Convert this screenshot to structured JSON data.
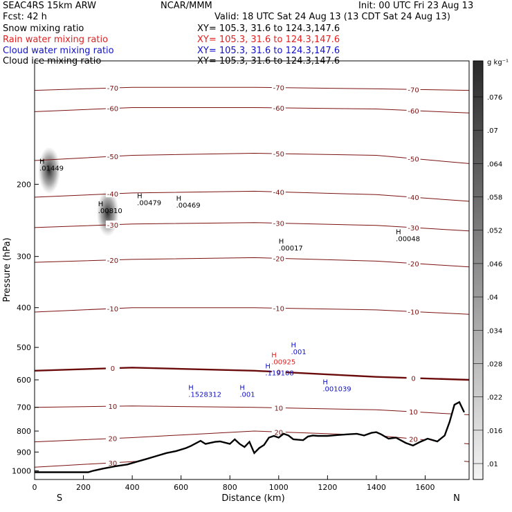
{
  "header": {
    "model": "SEAC4RS 15km ARW",
    "org": "NCAR/MMM",
    "init": "Init: 00 UTC Fri 23 Aug 13",
    "fcst": "Fcst:    42 h",
    "valid": "Valid: 18 UTC Sat 24 Aug 13 (13 CDT Sat 24 Aug 13)"
  },
  "fields": [
    {
      "name": "Snow mixing ratio",
      "xy": "XY= 105.3, 31.6 to 124.3,147.6",
      "color": "#000000"
    },
    {
      "name": "Rain water mixing ratio",
      "xy": "XY= 105.3, 31.6 to 124.3,147.6",
      "color": "#e02020"
    },
    {
      "name": "Cloud water mixing ratio",
      "xy": "XY= 105.3, 31.6 to 124.3,147.6",
      "color": "#1010c8"
    },
    {
      "name": "Cloud ice mixing ratio",
      "xy": "XY= 105.3, 31.6 to 124.3,147.6",
      "color": "#000000"
    }
  ],
  "colors": {
    "temperature": "#7a1010",
    "zero_isotherm": "#6a0a0a",
    "terrain": "#000000",
    "snow": "#000000",
    "rain": "#e02020",
    "cloud": "#1010c8"
  },
  "chart_data": {
    "type": "cross-section",
    "xlabel": "Distance (km)",
    "ylabel": "Pressure (hPa)",
    "xlim": [
      0,
      1780
    ],
    "ylim": [
      1050,
      100
    ],
    "y_scale": "log",
    "x_ticks": [
      0,
      200,
      400,
      600,
      800,
      1000,
      1200,
      1400,
      1600
    ],
    "y_ticks": [
      200,
      300,
      400,
      500,
      600,
      700,
      800,
      900,
      1000
    ],
    "end_labels": {
      "left": "S",
      "right": "N"
    },
    "colorbar": {
      "units": "g kg⁻¹",
      "ticks": [
        ".076",
        ".07",
        ".064",
        ".058",
        ".052",
        ".046",
        ".04",
        ".034",
        ".028",
        ".022",
        ".016",
        ".01"
      ]
    },
    "terrain": {
      "x": [
        0,
        220,
        240,
        280,
        330,
        380,
        420,
        460,
        500,
        540,
        580,
        620,
        640,
        680,
        700,
        740,
        760,
        800,
        820,
        840,
        860,
        880,
        900,
        920,
        940,
        960,
        980,
        1000,
        1020,
        1040,
        1060,
        1080,
        1100,
        1120,
        1140,
        1160,
        1200,
        1240,
        1280,
        1320,
        1350,
        1380,
        1400,
        1420,
        1450,
        1480,
        1520,
        1550,
        1580,
        1610,
        1650,
        1680,
        1700,
        1720,
        1740,
        1760
      ],
      "pressure": [
        1008,
        1008,
        1000,
        988,
        975,
        965,
        950,
        935,
        920,
        905,
        895,
        880,
        870,
        845,
        860,
        850,
        848,
        860,
        838,
        860,
        875,
        850,
        905,
        880,
        865,
        830,
        822,
        830,
        812,
        820,
        838,
        840,
        842,
        825,
        820,
        822,
        822,
        818,
        815,
        812,
        820,
        808,
        805,
        815,
        835,
        830,
        855,
        868,
        850,
        835,
        848,
        820,
        760,
        690,
        680,
        720
      ]
    },
    "isotherms": [
      {
        "label": "-70",
        "pressure": [
          118,
          116,
          116,
          117,
          118
        ]
      },
      {
        "label": "-60",
        "pressure": [
          133,
          130,
          130,
          131,
          134
        ]
      },
      {
        "label": "-50",
        "pressure": [
          175,
          170,
          168,
          170,
          178
        ]
      },
      {
        "label": "-40",
        "pressure": [
          215,
          210,
          208,
          212,
          220
        ]
      },
      {
        "label": "-30",
        "pressure": [
          255,
          250,
          248,
          252,
          260
        ]
      },
      {
        "label": "-20",
        "pressure": [
          310,
          305,
          302,
          308,
          318
        ]
      },
      {
        "label": "-10",
        "pressure": [
          410,
          400,
          400,
          405,
          415
        ]
      },
      {
        "label": "0",
        "pressure": [
          570,
          560,
          570,
          590,
          600
        ]
      },
      {
        "label": "10",
        "pressure": [
          700,
          695,
          700,
          710,
          730
        ]
      },
      {
        "label": "20",
        "pressure": [
          850,
          830,
          800,
          820,
          860
        ]
      },
      {
        "label": "30",
        "pressure": [
          980,
          950,
          900,
          910,
          950
        ]
      }
    ],
    "isotherm_x": [
      0,
      400,
      900,
      1400,
      1780
    ],
    "maxima_labels": [
      {
        "field": "snow",
        "text": "H",
        "value": ".01449",
        "x": 20,
        "p": 185
      },
      {
        "field": "snow",
        "text": "H",
        "value": ".00810",
        "x": 260,
        "p": 235
      },
      {
        "field": "snow",
        "text": "H",
        "value": ".00479",
        "x": 420,
        "p": 225
      },
      {
        "field": "snow",
        "text": "H",
        "value": ".00469",
        "x": 580,
        "p": 228
      },
      {
        "field": "snow",
        "text": "H",
        "value": ".00017",
        "x": 1000,
        "p": 290
      },
      {
        "field": "snow",
        "text": "H",
        "value": ".00048",
        "x": 1480,
        "p": 275
      },
      {
        "field": "rain",
        "text": "H",
        "value": ".00925",
        "x": 970,
        "p": 550
      },
      {
        "field": "cloud",
        "text": "H",
        "value": ".119108",
        "x": 945,
        "p": 585
      },
      {
        "field": "cloud",
        "text": "H",
        "value": ".001039",
        "x": 1180,
        "p": 640
      },
      {
        "field": "cloud",
        "text": "H",
        "value": ".1528312",
        "x": 630,
        "p": 660
      },
      {
        "field": "cloud",
        "text": "H",
        "value": ".001",
        "x": 840,
        "p": 660
      },
      {
        "field": "cloud",
        "text": "H",
        "value": ".001",
        "x": 1050,
        "p": 520
      }
    ]
  }
}
